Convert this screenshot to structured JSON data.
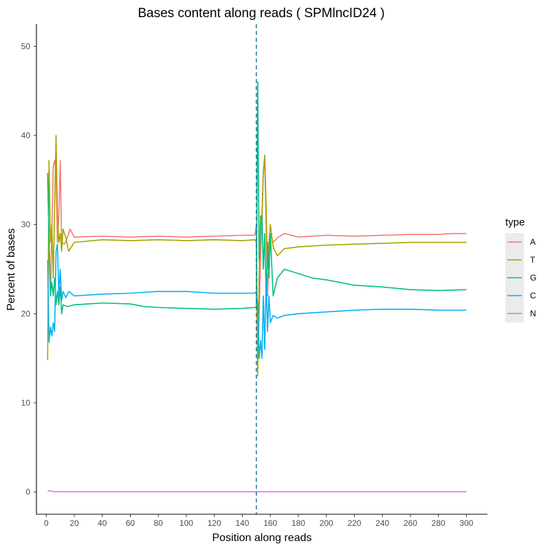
{
  "chart_data": {
    "type": "line",
    "title": "Bases content along reads ( SPMlncID24 )",
    "xlabel": "Position along reads",
    "ylabel": "Percent of bases",
    "xlim": [
      -7,
      315
    ],
    "ylim": [
      -2.5,
      52.5
    ],
    "x_ticks": [
      0,
      20,
      40,
      60,
      80,
      100,
      120,
      140,
      160,
      180,
      200,
      220,
      240,
      260,
      280,
      300
    ],
    "y_ticks": [
      0,
      10,
      20,
      30,
      40,
      50
    ],
    "vline_x": 150,
    "vline_color": "#2a7fa0",
    "grid": false,
    "legend": {
      "title": "type",
      "position": "right"
    },
    "series": [
      {
        "name": "A",
        "color": "#F8766D",
        "points": [
          [
            1,
            35.5
          ],
          [
            3,
            22
          ],
          [
            5,
            36.5
          ],
          [
            6,
            37.2
          ],
          [
            7,
            36
          ],
          [
            8,
            28
          ],
          [
            9,
            31
          ],
          [
            10,
            37.2
          ],
          [
            11,
            28
          ],
          [
            13,
            27.8
          ],
          [
            15,
            28.5
          ],
          [
            17,
            29.5
          ],
          [
            20,
            28.6
          ],
          [
            40,
            28.7
          ],
          [
            60,
            28.6
          ],
          [
            80,
            28.7
          ],
          [
            100,
            28.6
          ],
          [
            120,
            28.7
          ],
          [
            140,
            28.8
          ],
          [
            149,
            28.8
          ],
          [
            150,
            30
          ],
          [
            151,
            14
          ],
          [
            152,
            20
          ],
          [
            153,
            26
          ],
          [
            154,
            31
          ],
          [
            155,
            36
          ],
          [
            156,
            37
          ],
          [
            157,
            30
          ],
          [
            158,
            22
          ],
          [
            159,
            26
          ],
          [
            160,
            29
          ],
          [
            162,
            28
          ],
          [
            165,
            28.5
          ],
          [
            170,
            29
          ],
          [
            180,
            28.6
          ],
          [
            200,
            28.8
          ],
          [
            220,
            28.7
          ],
          [
            240,
            28.8
          ],
          [
            260,
            28.9
          ],
          [
            280,
            28.9
          ],
          [
            290,
            29
          ],
          [
            300,
            29
          ]
        ]
      },
      {
        "name": "T",
        "color": "#A3A500",
        "points": [
          [
            1,
            14.8
          ],
          [
            2,
            37.2
          ],
          [
            3,
            28
          ],
          [
            4,
            30
          ],
          [
            5,
            24
          ],
          [
            6,
            32
          ],
          [
            7,
            40
          ],
          [
            8,
            31
          ],
          [
            9,
            28
          ],
          [
            10,
            29
          ],
          [
            11,
            27
          ],
          [
            12,
            29.5
          ],
          [
            14,
            28.5
          ],
          [
            16,
            27
          ],
          [
            20,
            28
          ],
          [
            40,
            28.3
          ],
          [
            60,
            28.2
          ],
          [
            80,
            28.3
          ],
          [
            100,
            28.2
          ],
          [
            120,
            28.3
          ],
          [
            140,
            28.2
          ],
          [
            149,
            28.3
          ],
          [
            150,
            28
          ],
          [
            151,
            13
          ],
          [
            152,
            24
          ],
          [
            153,
            31
          ],
          [
            154,
            30
          ],
          [
            155,
            36
          ],
          [
            156,
            37.8
          ],
          [
            157,
            32
          ],
          [
            158,
            25
          ],
          [
            159,
            28
          ],
          [
            160,
            30
          ],
          [
            162,
            27.5
          ],
          [
            165,
            26.5
          ],
          [
            170,
            27.3
          ],
          [
            180,
            27.5
          ],
          [
            200,
            27.7
          ],
          [
            220,
            27.8
          ],
          [
            240,
            27.9
          ],
          [
            260,
            28
          ],
          [
            280,
            28
          ],
          [
            290,
            28
          ],
          [
            300,
            28
          ]
        ]
      },
      {
        "name": "G",
        "color": "#00BF7D",
        "points": [
          [
            1,
            35.8
          ],
          [
            2,
            28
          ],
          [
            3,
            22
          ],
          [
            4,
            23.5
          ],
          [
            5,
            22
          ],
          [
            6,
            24
          ],
          [
            7,
            21
          ],
          [
            8,
            22.5
          ],
          [
            9,
            21
          ],
          [
            10,
            23
          ],
          [
            11,
            20
          ],
          [
            12,
            21
          ],
          [
            15,
            20.8
          ],
          [
            20,
            21
          ],
          [
            40,
            21.2
          ],
          [
            60,
            21.1
          ],
          [
            70,
            20.8
          ],
          [
            80,
            20.7
          ],
          [
            100,
            20.6
          ],
          [
            120,
            20.5
          ],
          [
            140,
            20.6
          ],
          [
            149,
            20.7
          ],
          [
            150,
            20.8
          ],
          [
            151,
            46
          ],
          [
            152,
            26
          ],
          [
            153,
            30
          ],
          [
            154,
            31
          ],
          [
            155,
            25
          ],
          [
            156,
            29
          ],
          [
            157,
            22
          ],
          [
            158,
            28
          ],
          [
            159,
            24
          ],
          [
            160,
            29
          ],
          [
            162,
            22
          ],
          [
            165,
            24
          ],
          [
            170,
            25
          ],
          [
            180,
            24.5
          ],
          [
            190,
            24
          ],
          [
            200,
            23.8
          ],
          [
            220,
            23.2
          ],
          [
            240,
            23
          ],
          [
            260,
            22.7
          ],
          [
            280,
            22.6
          ],
          [
            300,
            22.7
          ]
        ]
      },
      {
        "name": "C",
        "color": "#00B0F6",
        "points": [
          [
            1,
            26
          ],
          [
            2,
            16.8
          ],
          [
            3,
            18.5
          ],
          [
            4,
            17.5
          ],
          [
            5,
            19
          ],
          [
            6,
            18
          ],
          [
            7,
            27
          ],
          [
            8,
            27.8
          ],
          [
            9,
            22
          ],
          [
            10,
            25
          ],
          [
            11,
            21.5
          ],
          [
            12,
            22.5
          ],
          [
            14,
            21.8
          ],
          [
            16,
            22.5
          ],
          [
            20,
            22
          ],
          [
            40,
            22.2
          ],
          [
            60,
            22.3
          ],
          [
            80,
            22.5
          ],
          [
            100,
            22.5
          ],
          [
            120,
            22.3
          ],
          [
            140,
            22.3
          ],
          [
            149,
            22.3
          ],
          [
            150,
            22.5
          ],
          [
            151,
            21
          ],
          [
            152,
            15
          ],
          [
            153,
            17
          ],
          [
            154,
            15
          ],
          [
            155,
            22
          ],
          [
            156,
            16
          ],
          [
            157,
            24
          ],
          [
            158,
            18
          ],
          [
            159,
            22
          ],
          [
            160,
            19
          ],
          [
            162,
            19.8
          ],
          [
            165,
            19.5
          ],
          [
            170,
            19.8
          ],
          [
            180,
            20
          ],
          [
            200,
            20.2
          ],
          [
            220,
            20.4
          ],
          [
            240,
            20.5
          ],
          [
            260,
            20.5
          ],
          [
            280,
            20.4
          ],
          [
            300,
            20.4
          ]
        ]
      },
      {
        "name": "N",
        "color": "#E76BF3",
        "points": [
          [
            1,
            0.1
          ],
          [
            2,
            0.1
          ],
          [
            3,
            0.15
          ],
          [
            4,
            0.1
          ],
          [
            5,
            0.05
          ],
          [
            10,
            0.02
          ],
          [
            50,
            0.02
          ],
          [
            100,
            0.02
          ],
          [
            150,
            0.02
          ],
          [
            200,
            0.02
          ],
          [
            250,
            0.02
          ],
          [
            300,
            0.02
          ]
        ]
      }
    ]
  }
}
